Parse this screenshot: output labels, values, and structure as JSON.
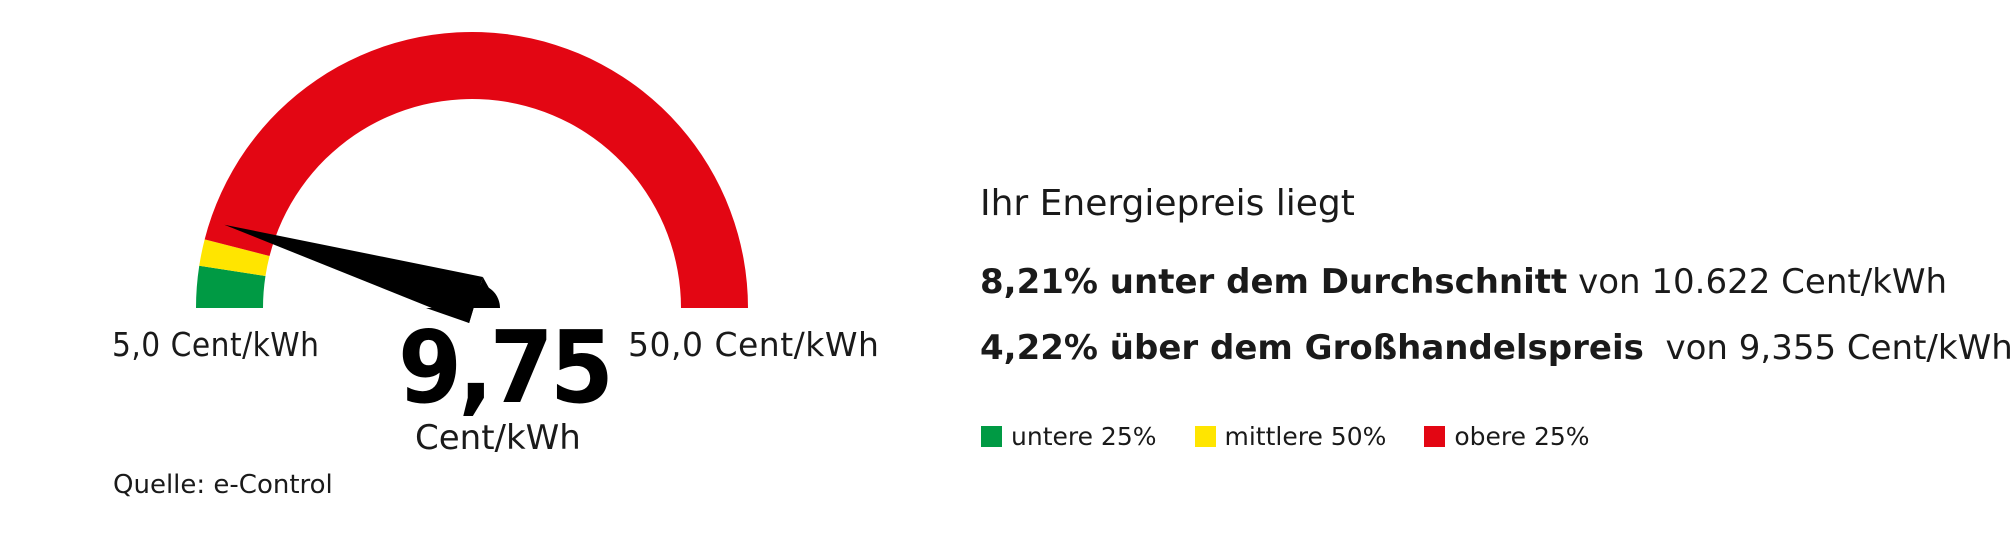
{
  "chart_data": {
    "type": "gauge",
    "min": 5.0,
    "max": 50.0,
    "value": 9.75,
    "bands": [
      {
        "name": "untere 25%",
        "from": 5.0,
        "to": 7.2,
        "color": "#009a44"
      },
      {
        "name": "mittlere 50%",
        "from": 7.2,
        "to": 8.6,
        "color": "#ffe500"
      },
      {
        "name": "obere 25%",
        "from": 8.6,
        "to": 50.0,
        "color": "#e30613"
      }
    ],
    "needle_color": "#000000"
  },
  "gauge": {
    "min_label": "5,0 Cent/kWh",
    "max_label": "50,0 Cent/kWh",
    "value_label": "9,75",
    "unit_label": "Cent/kWh"
  },
  "source": "Quelle: e-Control",
  "info": {
    "heading": "Ihr Energiepreis liegt",
    "line1_bold": "8,21% unter dem Durchschnitt",
    "line1_rest": " von 10.622 Cent/kWh",
    "line2_bold": "4,22% über dem Großhandelspreis",
    "line2_rest": "  von 9,355 Cent/kWh"
  },
  "legend": [
    {
      "label": "untere 25%",
      "color": "#009a44"
    },
    {
      "label": "mittlere 50%",
      "color": "#ffe500"
    },
    {
      "label": "obere 25%",
      "color": "#e30613"
    }
  ]
}
